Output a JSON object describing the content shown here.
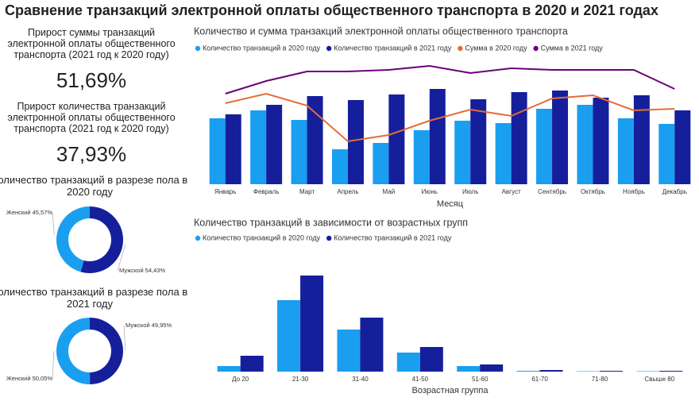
{
  "title": "Сравнение транзакций электронной оплаты общественного транспорта в 2020 и 2021 годах",
  "kpis": [
    {
      "label": "Прирост суммы транзакций электронной оплаты общественного транспорта (2021 год к 2020 году)",
      "value": "51,69%"
    },
    {
      "label": "Прирост количества транзакций электронной оплаты общественного транспорта (2021 год к 2020 году)",
      "value": "37,93%"
    }
  ],
  "chart_data": [
    {
      "type": "combo",
      "title": "Количество и сумма транзакций электронной оплаты общественного транспорта",
      "x_label": "Месяц",
      "categories": [
        "Январь",
        "Февраль",
        "Март",
        "Апрель",
        "Май",
        "Июнь",
        "Июль",
        "Август",
        "Сентябрь",
        "Октябрь",
        "Ноябрь",
        "Декабрь"
      ],
      "series": [
        {
          "name": "Количество транзакций в 2020 году",
          "type": "bar",
          "color": "#1a9ff0",
          "values": [
            83,
            93,
            81,
            44,
            52,
            68,
            80,
            77,
            95,
            100,
            83,
            76
          ]
        },
        {
          "name": "Количество транзакций в 2021 году",
          "type": "bar",
          "color": "#151f9c",
          "values": [
            88,
            100,
            111,
            106,
            113,
            120,
            107,
            116,
            118,
            109,
            112,
            93
          ]
        },
        {
          "name": "Сумма в 2020 году",
          "type": "line",
          "color": "#e66c37",
          "values": [
            102,
            114,
            99,
            54,
            62,
            80,
            94,
            86,
            108,
            112,
            93,
            95
          ]
        },
        {
          "name": "Сумма в 2021 году",
          "type": "line",
          "color": "#6b007b",
          "values": [
            114,
            130,
            142,
            142,
            144,
            149,
            140,
            146,
            144,
            144,
            144,
            120
          ]
        }
      ]
    },
    {
      "type": "donut",
      "title": "Количество транзакций в разрезе пола в 2020 году",
      "categories": [
        "Мужской",
        "Женский"
      ],
      "values": [
        54.43,
        45.57
      ],
      "value_labels": [
        "54,43%",
        "45,57%"
      ],
      "colors": [
        "#151f9c",
        "#1a9ff0"
      ]
    },
    {
      "type": "donut",
      "title": "Количество транзакций в разрезе пола в 2021 году",
      "categories": [
        "Мужской",
        "Женский"
      ],
      "values": [
        49.95,
        50.05
      ],
      "value_labels": [
        "49,95%",
        "50,05%"
      ],
      "colors": [
        "#151f9c",
        "#1a9ff0"
      ]
    },
    {
      "type": "bar",
      "title": "Количество транзакций в зависимости от возрастных групп",
      "x_label": "Возрастная группа",
      "categories": [
        "До 20",
        "21-30",
        "31-40",
        "41-50",
        "51-60",
        "61-70",
        "71-80",
        "Свыше 80"
      ],
      "series": [
        {
          "name": "Количество транзакций в 2020 году",
          "color": "#1a9ff0",
          "values": [
            7,
            90,
            53,
            24,
            7,
            1,
            0.5,
            0.5
          ]
        },
        {
          "name": "Количество транзакций в 2021 году",
          "color": "#151f9c",
          "values": [
            20,
            121,
            68,
            31,
            9,
            2,
            1,
            1
          ]
        }
      ]
    }
  ]
}
